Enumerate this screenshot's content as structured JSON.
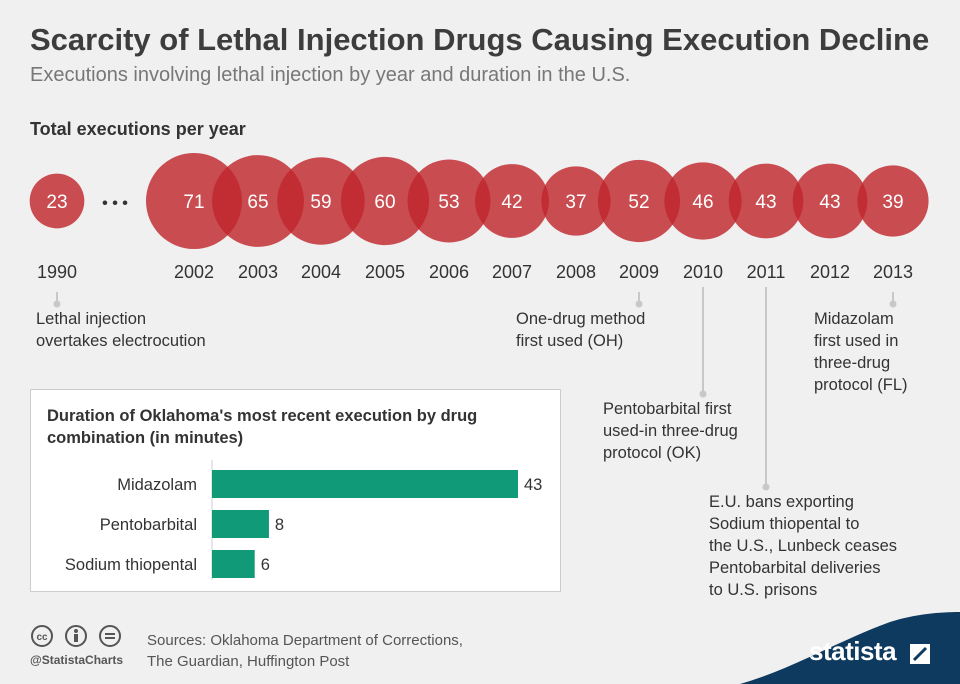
{
  "title": "Scarcity of Lethal Injection Drugs Causing Execution Decline",
  "subtitle": "Executions involving lethal injection by year and duration in the U.S.",
  "section_label": "Total executions per year",
  "ellipsis": "• • •",
  "notes": {
    "n1990": [
      "Lethal injection",
      "overtakes electrocution"
    ],
    "n2009": [
      "One-drug method",
      "first used (OH)"
    ],
    "n2010": [
      "Pentobarbital first",
      "used-in three-drug",
      "protocol (OK)"
    ],
    "n2011": [
      "E.U. bans exporting",
      "Sodium thiopental to",
      "the U.S., Lunbeck ceases",
      "Pentobarbital deliveries",
      "to U.S. prisons"
    ],
    "n2013": [
      "Midazolam",
      "first used in",
      "three-drug",
      "protocol (FL)"
    ]
  },
  "panel_title": "Duration of Oklahoma's most recent execution by drug combination (in minutes)",
  "sources": [
    "Sources: Oklahoma Department of Corrections,",
    "The Guardian, Huffington Post"
  ],
  "handle": "@StatistaCharts",
  "brand": "statista",
  "colors": {
    "bubble": "#c0272d",
    "bar": "#119a78",
    "background": "#f0f0f0",
    "brand_bg": "#0f3a5f"
  },
  "chart_data": [
    {
      "type": "scatter",
      "title": "Total executions per year",
      "x": [
        "1990",
        "2002",
        "2003",
        "2004",
        "2005",
        "2006",
        "2007",
        "2008",
        "2009",
        "2010",
        "2011",
        "2012",
        "2013"
      ],
      "values": [
        23,
        71,
        65,
        59,
        60,
        53,
        42,
        37,
        52,
        46,
        43,
        43,
        39
      ]
    },
    {
      "type": "bar",
      "title": "Duration of Oklahoma's most recent execution by drug combination (in minutes)",
      "categories": [
        "Midazolam",
        "Pentobarbital",
        "Sodium thiopental"
      ],
      "values": [
        43,
        8,
        6
      ]
    }
  ]
}
